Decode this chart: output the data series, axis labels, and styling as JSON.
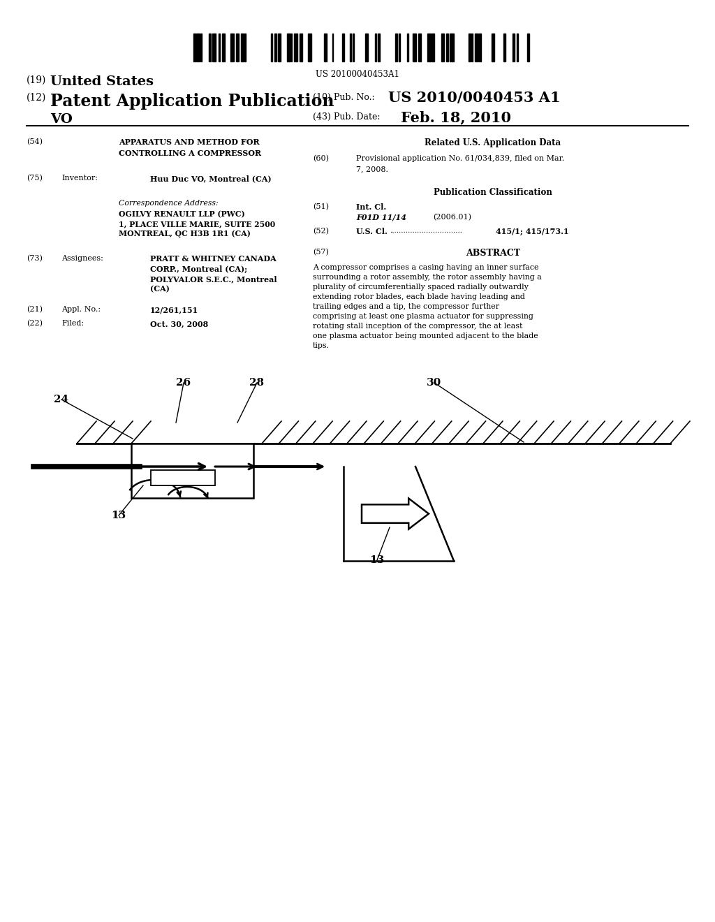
{
  "bg": "#ffffff",
  "barcode_number": "US 20100040453A1",
  "header_19": "(19)",
  "header_19_bold": "United States",
  "header_12": "(12)",
  "header_12_bold": "Patent Application Publication",
  "header_vo": "VO",
  "pub_label": "(10) Pub. No.:",
  "pub_value": "US 2010/0040453 A1",
  "date_label": "(43) Pub. Date:",
  "date_value": "Feb. 18, 2010",
  "f54_num": "(54)",
  "f54_t1": "APPARATUS AND METHOD FOR",
  "f54_t2": "CONTROLLING A COMPRESSOR",
  "f75_num": "(75)",
  "f75_lbl": "Inventor:",
  "f75_val": "Huu Duc VO, Montreal (CA)",
  "corr_head": "Correspondence Address:",
  "corr1": "OGILVY RENAULT LLP (PWC)",
  "corr2": "1, PLACE VILLE MARIE, SUITE 2500",
  "corr3": "MONTREAL, QC H3B 1R1 (CA)",
  "f73_num": "(73)",
  "f73_lbl": "Assignees:",
  "f73_v1": "PRATT & WHITNEY CANADA",
  "f73_v2": "CORP., Montreal (CA);",
  "f73_v3": "POLYVALOR S.E.C., Montreal",
  "f73_v4": "(CA)",
  "f21_num": "(21)",
  "f21_lbl": "Appl. No.:",
  "f21_val": "12/261,151",
  "f22_num": "(22)",
  "f22_lbl": "Filed:",
  "f22_val": "Oct. 30, 2008",
  "related_head": "Related U.S. Application Data",
  "f60_num": "(60)",
  "f60_txt1": "Provisional application No. 61/034,839, filed on Mar.",
  "f60_txt2": "7, 2008.",
  "pub_class_head": "Publication Classification",
  "f51_num": "(51)",
  "f51_lbl": "Int. Cl.",
  "f51_cls": "F01D 11/14",
  "f51_yr": "(2006.01)",
  "f52_num": "(52)",
  "f52_lbl": "U.S. Cl.",
  "f52_dots": "................................",
  "f52_val": "415/1; 415/173.1",
  "f57_num": "(57)",
  "f57_lbl": "ABSTRACT",
  "abstract": "A compressor comprises a casing having an inner surface surrounding a rotor assembly, the rotor assembly having a plurality of circumferentially spaced radially outwardly extending rotor blades, each blade having leading and trailing edges and a tip, the compressor further comprising at least one plasma actuator for suppressing rotating stall inception of the compressor, the at least one plasma actuator being mounted adjacent to the blade tips.",
  "lbl_24": "24",
  "lbl_26": "26",
  "lbl_28": "28",
  "lbl_30": "30",
  "lbl_13": "13"
}
